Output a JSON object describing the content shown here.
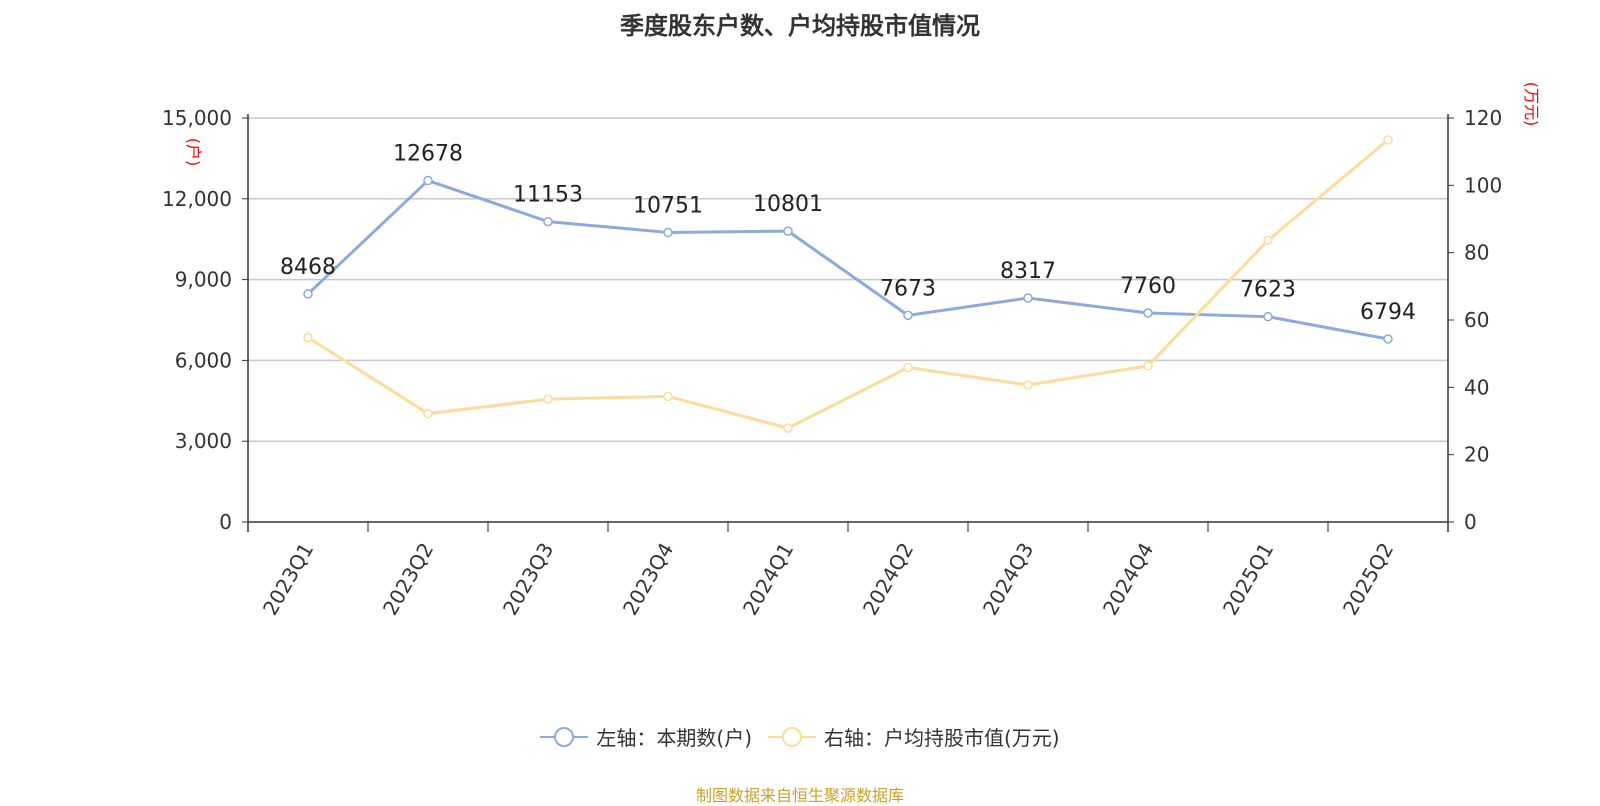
{
  "chart_data": {
    "type": "line",
    "title": "季度股东户数、户均持股市值情况",
    "categories": [
      "2023Q1",
      "2023Q2",
      "2023Q3",
      "2023Q4",
      "2024Q1",
      "2024Q2",
      "2024Q3",
      "2024Q4",
      "2025Q1",
      "2025Q2"
    ],
    "left_axis": {
      "unit": "(户)",
      "ylim": [
        0,
        15000
      ],
      "ticks": [
        "0",
        "3,000",
        "6,000",
        "9,000",
        "12,000",
        "15,000"
      ],
      "tick_values": [
        0,
        3000,
        6000,
        9000,
        12000,
        15000
      ]
    },
    "right_axis": {
      "unit": "(万元)",
      "ylim": [
        0,
        120
      ],
      "ticks": [
        "0",
        "20",
        "40",
        "60",
        "80",
        "100",
        "120"
      ],
      "tick_values": [
        0,
        20,
        40,
        60,
        80,
        100,
        120
      ]
    },
    "series": [
      {
        "name": "左轴：本期数(户)",
        "axis": "left",
        "color": "#8eaadc",
        "values": [
          8468,
          12678,
          11153,
          10751,
          10801,
          7673,
          8317,
          7760,
          7623,
          6794
        ],
        "labels": [
          "8468",
          "12678",
          "11153",
          "10751",
          "10801",
          "7673",
          "8317",
          "7760",
          "7623",
          "6794"
        ]
      },
      {
        "name": "右轴：户均持股市值(万元)",
        "axis": "right",
        "color": "#fddc9b",
        "values": [
          54.8,
          32.2,
          36.5,
          37.3,
          27.9,
          45.9,
          40.7,
          46.4,
          83.7,
          113.5
        ]
      }
    ],
    "grid": true,
    "legend_position": "bottom"
  },
  "source": "制图数据来自恒生聚源数据库"
}
